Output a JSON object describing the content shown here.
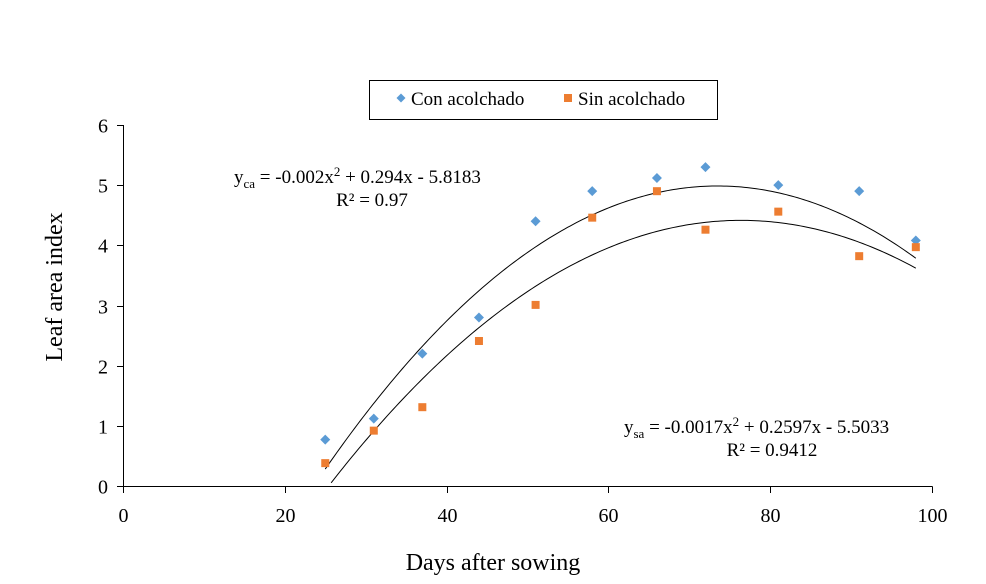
{
  "chart_data": {
    "type": "scatter",
    "title": "",
    "xlabel": "Days after sowing",
    "ylabel": "Leaf area index",
    "xlim": [
      0,
      100
    ],
    "ylim": [
      0,
      6
    ],
    "xticks": [
      0,
      20,
      40,
      60,
      80,
      100
    ],
    "yticks": [
      0,
      1,
      2,
      3,
      4,
      5,
      6
    ],
    "grid": false,
    "legend_position": "top-center",
    "series": [
      {
        "name": "Con acolchado",
        "marker": "diamond",
        "color": "#5B9BD5",
        "x": [
          25,
          31,
          37,
          44,
          51,
          58,
          66,
          72,
          81,
          91,
          98
        ],
        "y": [
          0.77,
          1.12,
          2.2,
          2.8,
          4.4,
          4.9,
          5.12,
          5.3,
          5.0,
          4.9,
          4.08
        ],
        "trendline": {
          "type": "polynomial",
          "a": -0.002,
          "b": 0.294,
          "c": -5.8183,
          "x_from": 25,
          "x_to": 98
        },
        "equation": {
          "lead": "y",
          "sub": "ca",
          "before_sup": " = -0.002x",
          "sup": "2",
          "after_sup": " + 0.294x - 5.8183"
        },
        "r2_text": "R² = 0.97"
      },
      {
        "name": "Sin acolchado",
        "marker": "square",
        "color": "#ED7D31",
        "x": [
          25,
          31,
          37,
          44,
          51,
          58,
          66,
          72,
          81,
          91,
          98
        ],
        "y": [
          0.38,
          0.92,
          1.31,
          2.41,
          3.01,
          4.46,
          4.9,
          4.26,
          4.56,
          3.82,
          3.97
        ],
        "trendline": {
          "type": "polynomial",
          "a": -0.0017,
          "b": 0.2597,
          "c": -5.5033,
          "x_from": 25,
          "x_to": 98
        },
        "equation": {
          "lead": "y",
          "sub": "sa",
          "before_sup": " = -0.0017x",
          "sup": "2",
          "after_sup": " + 0.2597x - 5.5033"
        },
        "r2_text": "R² = 0.9412"
      }
    ]
  }
}
